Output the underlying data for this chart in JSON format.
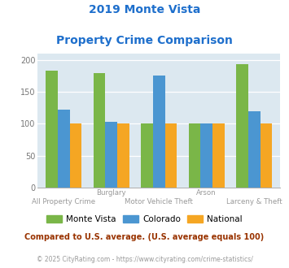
{
  "title_line1": "2019 Monte Vista",
  "title_line2": "Property Crime Comparison",
  "categories": [
    "All Property Crime",
    "Burglary",
    "Motor Vehicle Theft",
    "Arson",
    "Larceny & Theft"
  ],
  "category_top_labels": [
    "",
    "Burglary",
    "",
    "Arson",
    ""
  ],
  "category_bottom_labels": [
    "All Property Crime",
    "",
    "Motor Vehicle Theft",
    "",
    "Larceny & Theft"
  ],
  "monte_vista": [
    183,
    180,
    100,
    100,
    193
  ],
  "colorado": [
    122,
    103,
    175,
    100,
    120
  ],
  "national": [
    100,
    100,
    100,
    100,
    100
  ],
  "bar_colors": {
    "monte_vista": "#7ab648",
    "colorado": "#4b96d1",
    "national": "#f5a623"
  },
  "ylim": [
    0,
    210
  ],
  "yticks": [
    0,
    50,
    100,
    150,
    200
  ],
  "legend_labels": [
    "Monte Vista",
    "Colorado",
    "National"
  ],
  "footnote1": "Compared to U.S. average. (U.S. average equals 100)",
  "footnote2": "© 2025 CityRating.com - https://www.cityrating.com/crime-statistics/",
  "title_color": "#1e6fcc",
  "footnote1_color": "#993300",
  "footnote2_color": "#999999",
  "bg_color": "#dce8f0",
  "bar_width": 0.25
}
